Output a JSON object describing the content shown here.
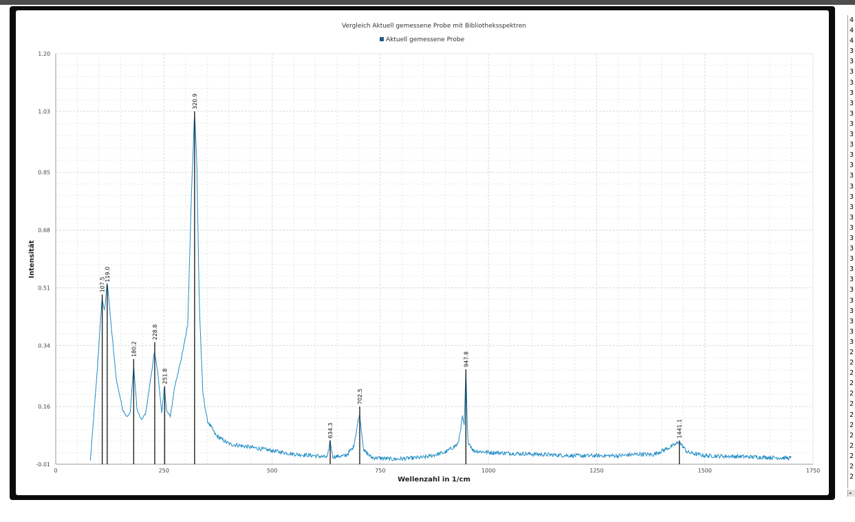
{
  "window": {
    "colors": {
      "frame": "#0b0b0b",
      "topbar": "#4d4d4d",
      "panel": "#ffffff"
    }
  },
  "chart": {
    "title": "Vergleich Aktuell gemessene Probe mit Bibliotheksspektren",
    "legend_label": "Aktuell gemessene Probe",
    "legend_swatch_icon": "square-icon",
    "xlabel": "Wellenzahl in 1/cm",
    "ylabel": "Intensität",
    "colors": {
      "series": "#1e8bc3",
      "marker": "#222222",
      "grid": "#d9d9d9",
      "legend_swatch": "#1f5b8c"
    }
  },
  "chart_data": {
    "type": "line",
    "title": "Vergleich Aktuell gemessene Probe mit Bibliotheksspektren",
    "xlabel": "Wellenzahl in 1/cm",
    "ylabel": "Intensität",
    "xlim": [
      0,
      1750
    ],
    "ylim": [
      -0.01,
      1.2
    ],
    "x_ticks": [
      "0",
      "250",
      "500",
      "750",
      "1000",
      "1250",
      "1500",
      "1750"
    ],
    "y_ticks": [
      "-0.01",
      "0.16",
      "0.34",
      "0.51",
      "0.68",
      "0.85",
      "1.03",
      "1.20"
    ],
    "grid": true,
    "legend_position": "top-center",
    "series": [
      {
        "name": "Aktuell gemessene Probe",
        "baseline": [
          [
            80,
            0.0
          ],
          [
            95,
            0.25
          ],
          [
            107,
            0.48
          ],
          [
            113,
            0.44
          ],
          [
            119,
            0.53
          ],
          [
            128,
            0.4
          ],
          [
            140,
            0.24
          ],
          [
            155,
            0.15
          ],
          [
            165,
            0.13
          ],
          [
            172,
            0.14
          ],
          [
            180,
            0.28
          ],
          [
            188,
            0.15
          ],
          [
            198,
            0.12
          ],
          [
            208,
            0.14
          ],
          [
            218,
            0.23
          ],
          [
            228,
            0.32
          ],
          [
            235,
            0.27
          ],
          [
            245,
            0.14
          ],
          [
            251,
            0.22
          ],
          [
            256,
            0.15
          ],
          [
            265,
            0.13
          ],
          [
            275,
            0.22
          ],
          [
            290,
            0.3
          ],
          [
            305,
            0.4
          ],
          [
            314,
            0.8
          ],
          [
            320.9,
            1.03
          ],
          [
            326,
            0.88
          ],
          [
            332,
            0.45
          ],
          [
            340,
            0.2
          ],
          [
            350,
            0.12
          ],
          [
            370,
            0.075
          ],
          [
            400,
            0.05
          ],
          [
            450,
            0.04
          ],
          [
            500,
            0.03
          ],
          [
            550,
            0.02
          ],
          [
            600,
            0.015
          ],
          [
            628,
            0.01
          ],
          [
            634,
            0.06
          ],
          [
            640,
            0.012
          ],
          [
            670,
            0.015
          ],
          [
            688,
            0.04
          ],
          [
            702,
            0.14
          ],
          [
            712,
            0.03
          ],
          [
            730,
            0.01
          ],
          [
            780,
            0.005
          ],
          [
            850,
            0.01
          ],
          [
            900,
            0.025
          ],
          [
            930,
            0.05
          ],
          [
            940,
            0.13
          ],
          [
            944,
            0.1
          ],
          [
            947.8,
            0.27
          ],
          [
            952,
            0.06
          ],
          [
            965,
            0.03
          ],
          [
            1000,
            0.025
          ],
          [
            1100,
            0.02
          ],
          [
            1200,
            0.015
          ],
          [
            1300,
            0.015
          ],
          [
            1350,
            0.02
          ],
          [
            1380,
            0.018
          ],
          [
            1420,
            0.04
          ],
          [
            1441.1,
            0.055
          ],
          [
            1460,
            0.025
          ],
          [
            1500,
            0.015
          ],
          [
            1600,
            0.012
          ],
          [
            1700,
            0.008
          ]
        ]
      }
    ],
    "peak_markers": [
      {
        "x": 107.5,
        "label": "107.5",
        "y": 0.49
      },
      {
        "x": 119.0,
        "label": "119.0",
        "y": 0.52
      },
      {
        "x": 180.2,
        "label": "180.2",
        "y": 0.3
      },
      {
        "x": 228.8,
        "label": "228.8",
        "y": 0.35
      },
      {
        "x": 251.8,
        "label": "251.8",
        "y": 0.22
      },
      {
        "x": 320.9,
        "label": "320.9",
        "y": 1.03
      },
      {
        "x": 634.3,
        "label": "634.3",
        "y": 0.06
      },
      {
        "x": 702.5,
        "label": "702.5",
        "y": 0.16
      },
      {
        "x": 947.8,
        "label": "947.8",
        "y": 0.27
      },
      {
        "x": 1441.1,
        "label": "1441.1",
        "y": 0.06
      }
    ]
  },
  "side_list": {
    "rows": [
      "4",
      "4",
      "4",
      "3",
      "3",
      "3",
      "3",
      "3",
      "3",
      "3",
      "3",
      "3",
      "3",
      "3",
      "3",
      "3",
      "3",
      "3",
      "3",
      "3",
      "3",
      "3",
      "3",
      "3",
      "3",
      "3",
      "3",
      "3",
      "3",
      "3",
      "3",
      "3",
      "2",
      "2",
      "2",
      "2",
      "2",
      "2",
      "2",
      "2",
      "2",
      "2",
      "2",
      "2",
      "2"
    ],
    "scroll_icon": "scroll-left-icon",
    "scroll_glyph": "◂"
  }
}
